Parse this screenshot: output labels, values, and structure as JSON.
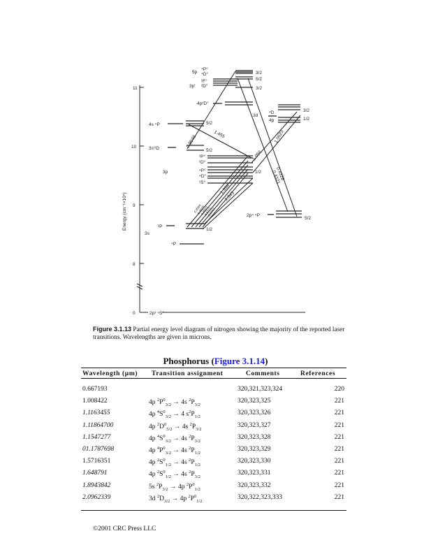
{
  "figure": {
    "axis_label": "Energy (cm⁻¹×10⁵)",
    "ticks": [
      "11",
      "10",
      "9",
      "8",
      "0"
    ],
    "level_labels": {
      "5p": "5p",
      "p4": "⁴P°",
      "d4": "⁴D°",
      "3pp": "3p'",
      "f2": "²F°",
      "d2": "²D°",
      "4p2d": "4p²D°",
      "4s4p": "4s ⁴P",
      "3s2d": "3s'²D",
      "3p": "3p",
      "p2o": "²P°",
      "d2o": "²D°",
      "p4o": "⁴P°",
      "d4o": "⁴D°",
      "s2o": "²S°",
      "3d": "3d",
      "4d": "⁴D",
      "4p": "4p",
      "2p": "²P",
      "3s": "3s",
      "4pl": "⁴P",
      "2p44p": "2p⁴ ⁴P",
      "ground": "2p³ ⁴S°"
    },
    "j_labels": [
      "3/2",
      "5/2",
      "3/2",
      "3/2",
      "1/2",
      "5/2",
      "5/2",
      "1/2",
      "1/2",
      "5/2"
    ],
    "wavelengths": [
      "0.9046",
      "1.455",
      "1.056",
      "1.0623",
      "0.4328",
      "0.4321",
      "1.358",
      "1.343",
      "0.8594",
      "0.8629",
      "0.8683",
      "0.8711",
      "0.8747"
    ]
  },
  "caption": {
    "label": "Figure 3.1.13",
    "text": "Partial energy level diagram of nitrogen showing the majority of the reported laser transitions. Wavelengths are given in microns."
  },
  "table": {
    "title": "Phosphorus (",
    "title_link": "Figure 3.1.14",
    "title_end": ")",
    "headers": [
      "Wavelength (µm)",
      "Transition assignment",
      "Comments",
      "References"
    ],
    "rows": [
      {
        "wavelength": "0.667193",
        "italic": false,
        "t": null,
        "comments": "320,321,323,324",
        "ref": "220"
      },
      {
        "wavelength": "1.008422",
        "italic": false,
        "t": [
          "4p ",
          "2",
          "P",
          "0",
          "3/2",
          " → 4s ",
          "2",
          "P",
          "",
          "3/2"
        ],
        "comments": "320,323,325",
        "ref": "221"
      },
      {
        "wavelength": "1.1163455",
        "italic": true,
        "t": [
          "4p ",
          "4",
          "S",
          "0",
          "3/2",
          " → 4 s",
          "2",
          "P",
          "",
          "1/2"
        ],
        "comments": "320,323,326",
        "ref": "221"
      },
      {
        "wavelength": "1.11864700",
        "italic": true,
        "t": [
          "4p ",
          "2",
          "D",
          "0",
          "5/2",
          " → 4s ",
          "2",
          "P",
          "",
          "3/2"
        ],
        "comments": "320,323,327",
        "ref": "221"
      },
      {
        "wavelength": "1.1547277",
        "italic": true,
        "t": [
          "4p ",
          "4",
          "S",
          "0",
          "3/2",
          " → 4s ",
          "2",
          "P",
          "",
          "3/2"
        ],
        "comments": "320,323,328",
        "ref": "221"
      },
      {
        "wavelength": "01.1787698",
        "italic": true,
        "t": [
          "4p ",
          "4",
          "P",
          "0",
          "3/2",
          " → 4s ",
          "2",
          "P",
          "",
          "1/2"
        ],
        "comments": "320,323,329",
        "ref": "221"
      },
      {
        "wavelength": "1.5716351",
        "italic": false,
        "t": [
          "4p ",
          "2",
          "S",
          "0",
          "1/2",
          " → 4s ",
          "2",
          "P",
          "",
          "1/2"
        ],
        "comments": "320,323,330",
        "ref": "221"
      },
      {
        "wavelength": "1.648791",
        "italic": true,
        "t": [
          "4p ",
          "2",
          "S",
          "0",
          "1/2",
          " → 4s ",
          "2",
          "P",
          "",
          "3/2"
        ],
        "comments": "320,323,331",
        "ref": "221"
      },
      {
        "wavelength": "1.8943842",
        "italic": true,
        "t": [
          "5s ",
          "2",
          "P",
          "",
          "3/2",
          " → 4p ",
          "2",
          "P",
          "0",
          "1/2"
        ],
        "comments": "320,323,332",
        "ref": "221"
      },
      {
        "wavelength": "2.0962339",
        "italic": true,
        "t": [
          "3d ",
          "2",
          "D",
          "",
          "3/2",
          " → 4p ",
          "2",
          "P",
          "0",
          "1/2"
        ],
        "comments": "320,322,323,333",
        "ref": "221"
      }
    ]
  },
  "footer": "©2001 CRC Press LLC"
}
